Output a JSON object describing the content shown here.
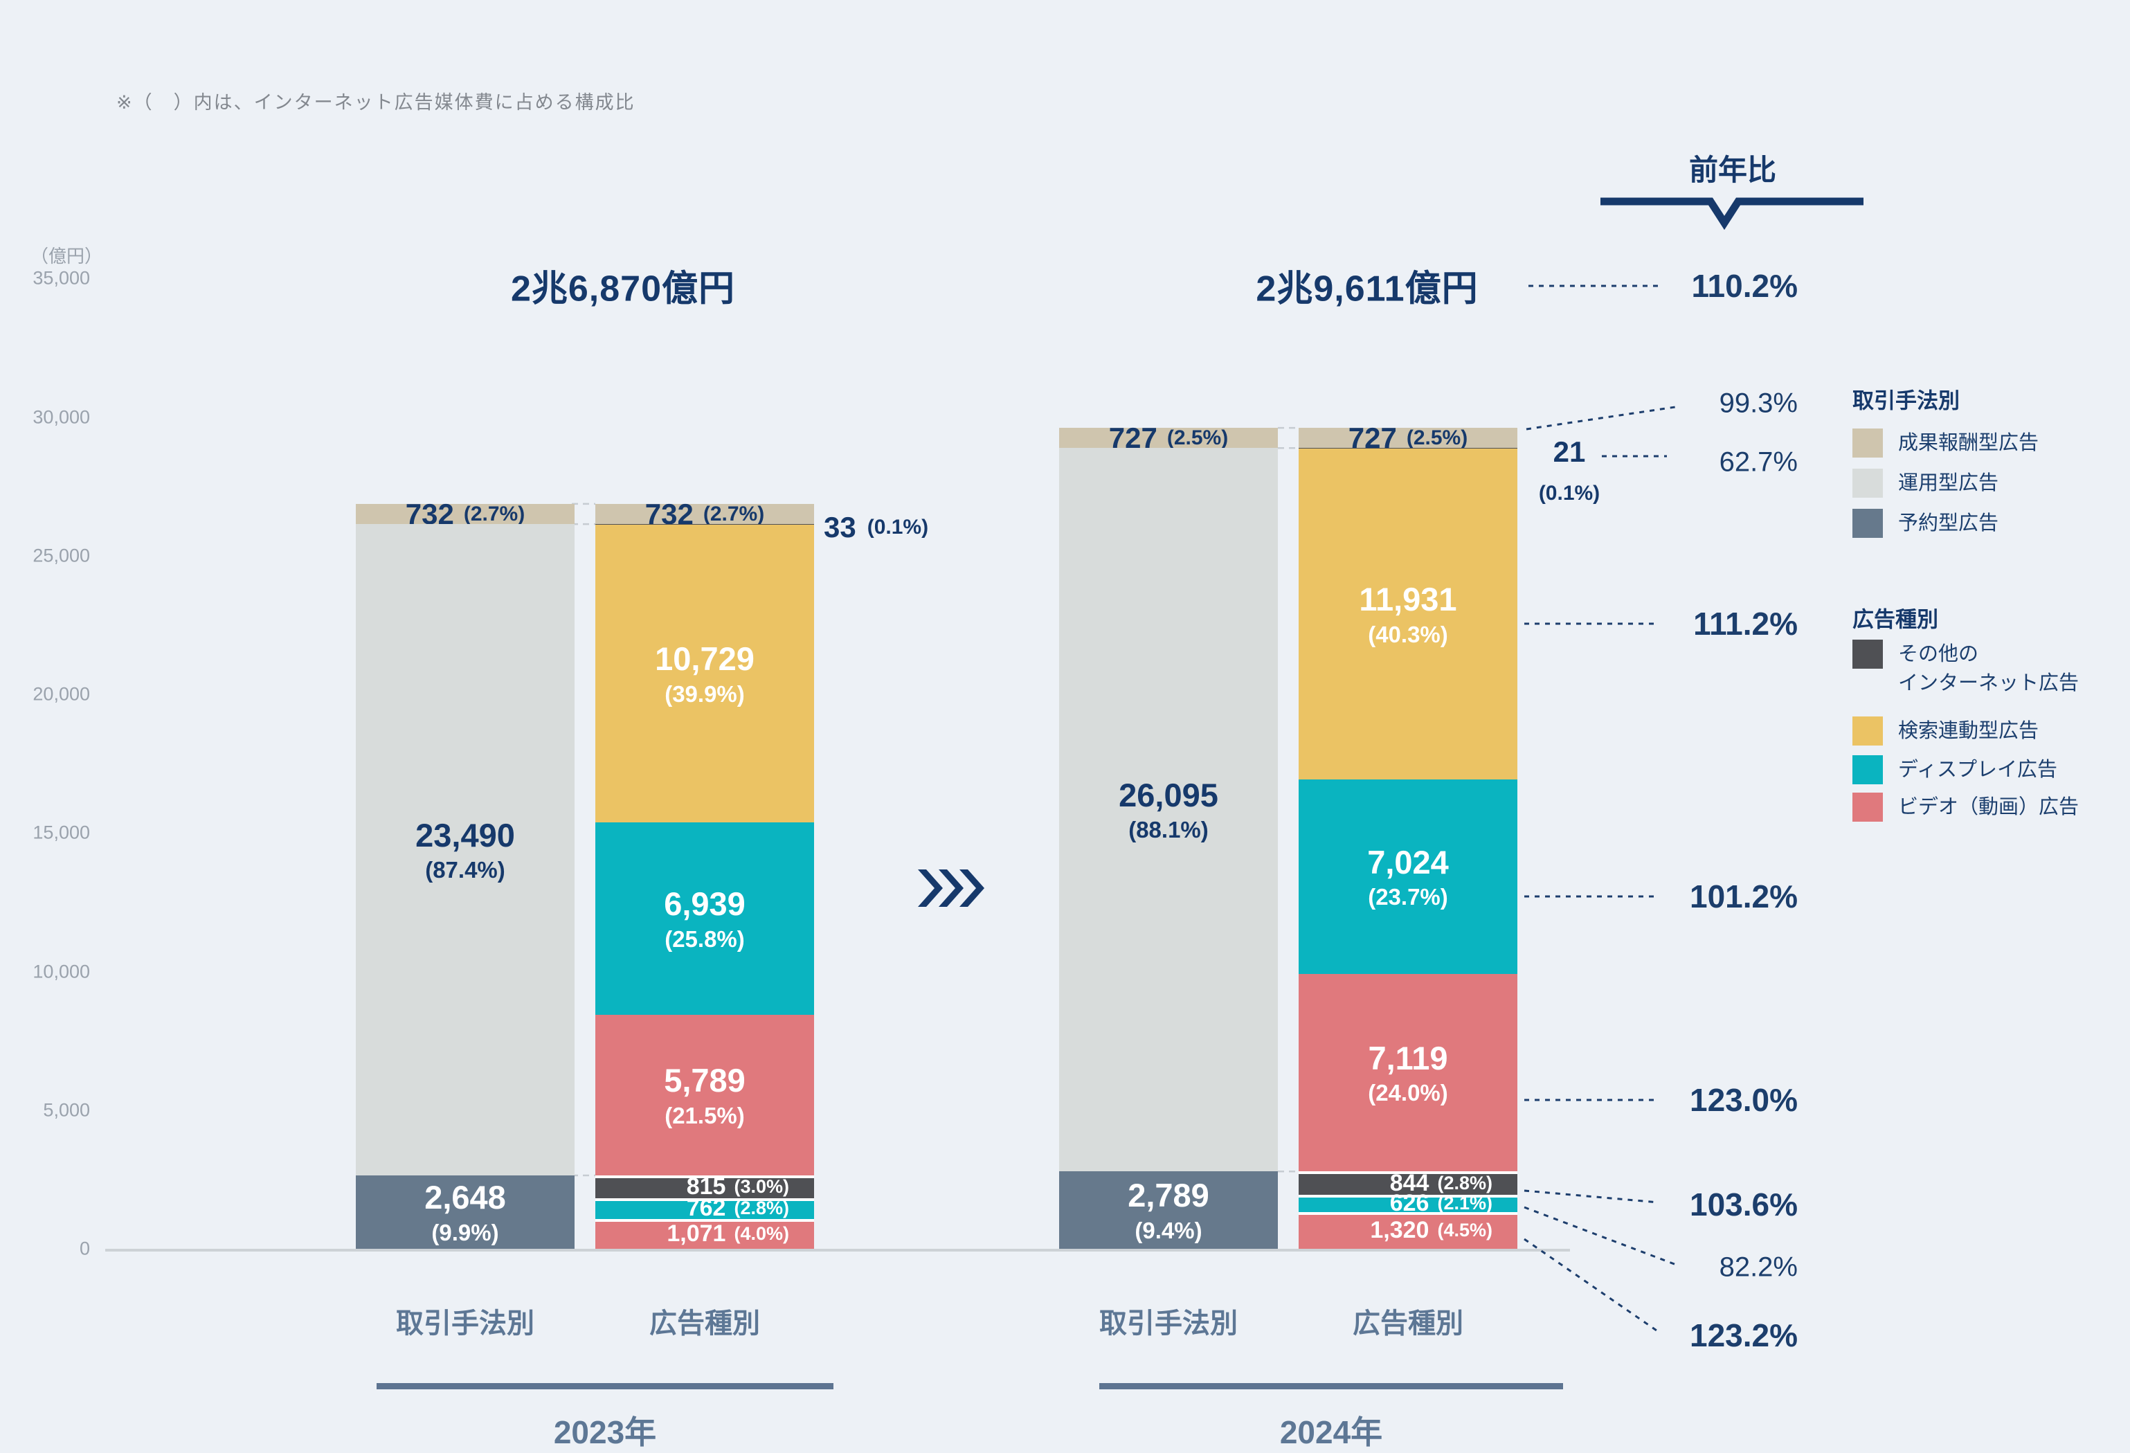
{
  "note": "※（　）内は、インターネット広告媒体費に占める構成比",
  "colors": {
    "beige": "#cfc5ae",
    "gray": "#d8dcdb",
    "slate": "#66798c",
    "dark": "#4f5054",
    "yellow": "#ebc364",
    "teal": "#0ab4c0",
    "red": "#e0797d",
    "navy": "#16396b",
    "slate_text": "#5d7795",
    "axis_text": "#9aa2ac",
    "background": "#edf1f6"
  },
  "chart_data": {
    "type": "bar",
    "y_axis": {
      "unit_label": "（億円）",
      "ticks": [
        35000,
        30000,
        25000,
        20000,
        15000,
        10000,
        5000,
        0
      ],
      "max": 35000,
      "grid": false
    },
    "groups": [
      {
        "year": "2023年",
        "total": 26870,
        "total_label": "2兆6,870億円",
        "bars": [
          {
            "label": "取引手法別",
            "segments": [
              {
                "name": "成果報酬型広告",
                "value": 732,
                "pct": "2.7%",
                "color": "beige",
                "style": "band"
              },
              {
                "name": "運用型広告",
                "value": 23490,
                "pct": "87.4%",
                "color": "gray",
                "style": "stacked"
              },
              {
                "name": "予約型広告",
                "value": 2648,
                "pct": "9.9%",
                "color": "slate",
                "style": "stacked"
              }
            ]
          },
          {
            "label": "広告種別",
            "segments": [
              {
                "name": "成果報酬型広告",
                "value": 732,
                "pct": "2.7%",
                "color": "beige",
                "style": "band"
              },
              {
                "name": "その他のインターネット広告",
                "value": 33,
                "pct": "0.1%",
                "color": "dark",
                "style": "external"
              },
              {
                "name": "検索連動型広告",
                "value": 10729,
                "pct": "39.9%",
                "color": "yellow",
                "style": "stacked"
              },
              {
                "name": "ディスプレイ広告",
                "value": 6939,
                "pct": "25.8%",
                "color": "teal",
                "style": "stacked"
              },
              {
                "name": "ビデオ（動画）広告",
                "value": 5789,
                "pct": "21.5%",
                "color": "red",
                "style": "stacked"
              },
              {
                "name": "その他のインターネット広告",
                "value": 815,
                "pct": "3.0%",
                "color": "dark",
                "style": "inline",
                "seam": true
              },
              {
                "name": "ディスプレイ広告",
                "value": 762,
                "pct": "2.8%",
                "color": "teal",
                "style": "inline",
                "seam": true
              },
              {
                "name": "ビデオ（動画）広告",
                "value": 1071,
                "pct": "4.0%",
                "color": "red",
                "style": "inline",
                "seam": true
              }
            ]
          }
        ]
      },
      {
        "year": "2024年",
        "total": 29611,
        "total_label": "2兆9,611億円",
        "bars": [
          {
            "label": "取引手法別",
            "segments": [
              {
                "name": "成果報酬型広告",
                "value": 727,
                "pct": "2.5%",
                "color": "beige",
                "style": "band"
              },
              {
                "name": "運用型広告",
                "value": 26095,
                "pct": "88.1%",
                "color": "gray",
                "style": "stacked"
              },
              {
                "name": "予約型広告",
                "value": 2789,
                "pct": "9.4%",
                "color": "slate",
                "style": "stacked"
              }
            ]
          },
          {
            "label": "広告種別",
            "segments": [
              {
                "name": "成果報酬型広告",
                "value": 727,
                "pct": "2.5%",
                "color": "beige",
                "style": "band"
              },
              {
                "name": "その他のインターネット広告",
                "value": 21,
                "pct": "0.1%",
                "color": "dark",
                "style": "external"
              },
              {
                "name": "検索連動型広告",
                "value": 11931,
                "pct": "40.3%",
                "color": "yellow",
                "style": "stacked"
              },
              {
                "name": "ディスプレイ広告",
                "value": 7024,
                "pct": "23.7%",
                "color": "teal",
                "style": "stacked"
              },
              {
                "name": "ビデオ（動画）広告",
                "value": 7119,
                "pct": "24.0%",
                "color": "red",
                "style": "stacked"
              },
              {
                "name": "その他のインターネット広告",
                "value": 844,
                "pct": "2.8%",
                "color": "dark",
                "style": "inline",
                "seam": true
              },
              {
                "name": "ディスプレイ広告",
                "value": 626,
                "pct": "2.1%",
                "color": "teal",
                "style": "inline",
                "seam": true
              },
              {
                "name": "ビデオ（動画）広告",
                "value": 1320,
                "pct": "4.5%",
                "color": "red",
                "style": "inline",
                "seam": true
              }
            ]
          }
        ]
      }
    ],
    "yoy": {
      "header": "前年比",
      "items": [
        {
          "key": "total",
          "label": "110.2%",
          "emph": true
        },
        {
          "key": "seika",
          "label": "99.3%",
          "emph": false
        },
        {
          "key": "sonota_unyo",
          "label": "62.7%",
          "emph": false
        },
        {
          "key": "kensaku",
          "label": "111.2%",
          "emph": true
        },
        {
          "key": "display",
          "label": "101.2%",
          "emph": true
        },
        {
          "key": "video",
          "label": "123.0%",
          "emph": true
        },
        {
          "key": "sonota_yoyaku",
          "label": "103.6%",
          "emph": true
        },
        {
          "key": "display_yoyaku",
          "label": "82.2%",
          "emph": false
        },
        {
          "key": "video_yoyaku",
          "label": "123.2%",
          "emph": true
        }
      ]
    },
    "legend": [
      {
        "title": "取引手法別",
        "items": [
          {
            "label": "成果報酬型広告",
            "color": "beige"
          },
          {
            "label": "運用型広告",
            "color": "gray"
          },
          {
            "label": "予約型広告",
            "color": "slate"
          }
        ]
      },
      {
        "title": "広告種別",
        "items": [
          {
            "label": "その他の\nインターネット広告",
            "color": "dark"
          },
          {
            "label": "検索連動型広告",
            "color": "yellow"
          },
          {
            "label": "ディスプレイ広告",
            "color": "teal"
          },
          {
            "label": "ビデオ（動画）広告",
            "color": "red"
          }
        ]
      }
    ]
  }
}
